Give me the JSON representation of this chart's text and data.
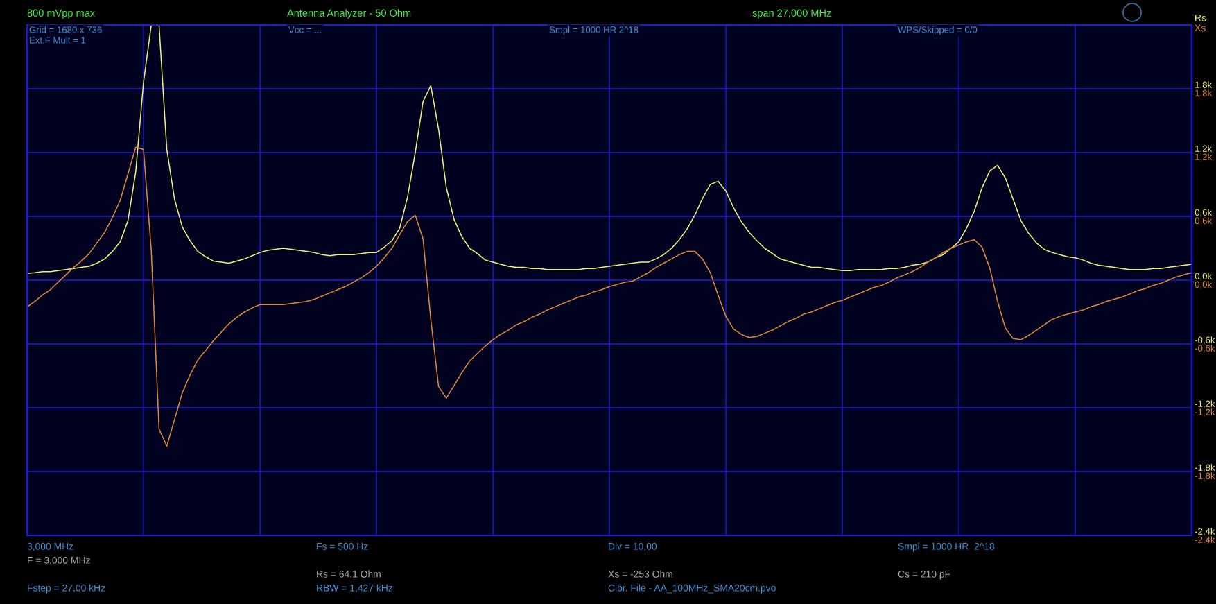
{
  "chart_data": {
    "type": "line",
    "title": "Antenna Analyzer - 50 Ohm",
    "annotations": [
      "800 mVpp max",
      "span 27,000 MHz",
      "Grid = 1680 x 736",
      "Ext.F Mult = 1",
      "Vcc = ...",
      "Smpl = 1000 HR 2^18",
      "WPS/Skipped = 0/0",
      "3,000 MHz",
      "F = 3,000 MHz",
      "Fstep = 27,00 kHz",
      "Fs = 500 Hz",
      "Rs = 64,1 Ohm",
      "RBW = 1,427 kHz",
      "Div = 10,00",
      "Xs = -253 Ohm",
      "Clbr. File - AA_100MHz_SMA20cm.pvo",
      "Smpl = 1000 HR  2^18",
      "Cs = 210 pF"
    ],
    "categories": [
      null,
      null,
      null,
      null,
      null,
      null,
      null,
      null,
      null,
      null,
      null,
      null,
      null,
      null,
      null,
      null,
      null,
      null,
      null,
      null,
      null,
      null,
      null,
      null,
      null,
      null,
      null,
      null,
      null,
      null,
      null,
      null,
      null,
      null,
      null,
      null,
      null,
      null,
      null,
      null,
      null,
      null,
      null,
      null,
      null,
      null,
      null,
      null,
      null,
      null,
      null,
      null,
      null,
      null,
      null,
      null,
      null,
      null,
      null,
      null,
      null,
      null,
      null,
      null,
      null,
      null,
      null,
      null,
      null,
      null,
      null,
      null,
      null,
      null,
      null,
      null,
      null,
      null,
      null,
      null,
      null,
      null,
      null,
      null,
      null,
      null,
      null,
      null,
      null,
      null,
      null,
      null,
      null,
      null,
      null,
      null,
      null,
      null,
      null,
      null,
      null,
      null,
      null,
      null,
      null,
      null,
      null,
      null,
      null,
      null,
      null,
      null,
      null,
      null,
      null,
      null,
      null,
      null,
      null,
      null,
      null,
      null,
      null,
      null,
      null,
      null,
      null,
      null,
      null,
      null,
      null,
      null,
      null,
      null,
      null,
      null,
      null,
      null,
      null,
      null,
      null,
      null,
      null,
      null,
      null,
      null,
      null,
      null,
      null,
      null,
      null
    ],
    "ylim": [
      -2400,
      2400
    ],
    "yticks": [
      {
        "value": -2400,
        "label": "-2,4k"
      },
      {
        "value": -1800,
        "label": "-1,8k"
      },
      {
        "value": -1200,
        "label": "-1,2k"
      },
      {
        "value": -600,
        "label": "-0,6k"
      },
      {
        "value": 0,
        "label": "0,0k"
      },
      {
        "value": 600,
        "label": "0,6k"
      },
      {
        "value": 1200,
        "label": "1,2k"
      },
      {
        "value": 1800,
        "label": "1,8k"
      },
      {
        "value": 2400,
        "label": null
      }
    ],
    "y2lim": [
      -2400,
      2400
    ],
    "y2ticks": [
      {
        "value": -2400,
        "label": "-2,4k"
      },
      {
        "value": -1800,
        "label": "-1,8k"
      },
      {
        "value": -1200,
        "label": "-1,2k"
      },
      {
        "value": -600,
        "label": "-0,6k"
      },
      {
        "value": 0,
        "label": "0,0k"
      },
      {
        "value": 600,
        "label": "0,6k"
      },
      {
        "value": 1200,
        "label": "1,2k"
      },
      {
        "value": 1800,
        "label": "1,8k"
      },
      {
        "value": 2400,
        "label": null
      }
    ],
    "grid": true,
    "legend": "top right",
    "series": [
      {
        "name": "Rs",
        "color": "#f2f27a",
        "values": [
          64,
          70,
          80,
          80,
          90,
          100,
          110,
          120,
          130,
          160,
          200,
          270,
          360,
          560,
          1020,
          1860,
          2400,
          2400,
          1230,
          760,
          500,
          370,
          270,
          220,
          180,
          170,
          160,
          180,
          200,
          230,
          260,
          280,
          290,
          300,
          290,
          280,
          270,
          260,
          240,
          230,
          240,
          240,
          240,
          250,
          260,
          260,
          310,
          370,
          490,
          780,
          1200,
          1680,
          1830,
          1420,
          870,
          570,
          410,
          300,
          250,
          190,
          170,
          150,
          130,
          120,
          120,
          110,
          110,
          100,
          100,
          100,
          100,
          100,
          110,
          110,
          120,
          130,
          140,
          150,
          160,
          170,
          170,
          200,
          240,
          300,
          380,
          480,
          610,
          770,
          900,
          930,
          840,
          680,
          550,
          450,
          370,
          300,
          250,
          200,
          180,
          160,
          140,
          120,
          120,
          110,
          100,
          90,
          90,
          100,
          100,
          100,
          100,
          110,
          110,
          120,
          140,
          150,
          170,
          210,
          240,
          300,
          360,
          490,
          650,
          870,
          1030,
          1080,
          960,
          760,
          560,
          440,
          350,
          290,
          260,
          240,
          220,
          210,
          190,
          160,
          140,
          130,
          120,
          110,
          100,
          100,
          100,
          110,
          110,
          120,
          130,
          140,
          150
        ]
      },
      {
        "name": "Xs",
        "color": "#e0893a",
        "axis": "y2",
        "values": [
          -253,
          -200,
          -140,
          -90,
          -20,
          50,
          120,
          180,
          250,
          350,
          450,
          590,
          750,
          1000,
          1250,
          1230,
          280,
          -1400,
          -1560,
          -1310,
          -1060,
          -890,
          -750,
          -660,
          -570,
          -490,
          -410,
          -350,
          -300,
          -260,
          -230,
          -230,
          -230,
          -230,
          -220,
          -210,
          -200,
          -180,
          -150,
          -120,
          -90,
          -60,
          -20,
          20,
          70,
          130,
          210,
          300,
          430,
          550,
          610,
          390,
          -370,
          -1000,
          -1110,
          -990,
          -870,
          -760,
          -690,
          -620,
          -560,
          -510,
          -470,
          -420,
          -390,
          -350,
          -320,
          -280,
          -250,
          -220,
          -190,
          -160,
          -140,
          -110,
          -90,
          -60,
          -40,
          -20,
          -10,
          30,
          70,
          120,
          160,
          200,
          240,
          270,
          270,
          200,
          70,
          -140,
          -340,
          -460,
          -510,
          -540,
          -530,
          -500,
          -470,
          -430,
          -390,
          -360,
          -320,
          -300,
          -270,
          -240,
          -210,
          -190,
          -160,
          -130,
          -100,
          -70,
          -50,
          -20,
          20,
          50,
          80,
          120,
          170,
          210,
          260,
          300,
          330,
          360,
          380,
          310,
          110,
          -200,
          -450,
          -550,
          -560,
          -520,
          -470,
          -420,
          -370,
          -340,
          -320,
          -300,
          -280,
          -250,
          -230,
          -200,
          -180,
          -160,
          -130,
          -100,
          -80,
          -50,
          -30,
          0,
          30,
          50,
          70
        ]
      }
    ]
  }
}
